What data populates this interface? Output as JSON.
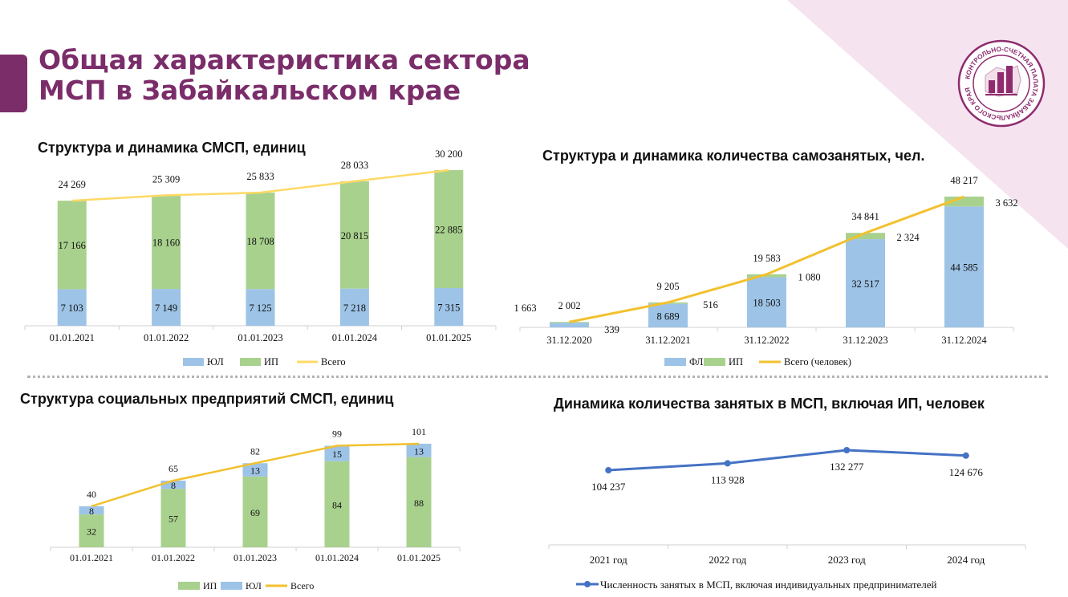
{
  "page": {
    "title_line1": "Общая характеристика сектора",
    "title_line2": "МСП в Забайкальском крае",
    "logo_text": "КОНТРОЛЬНО-СЧЕТНАЯ ПАЛАТА ЗАБАЙКАЛЬСКОГО КРАЯ"
  },
  "colors": {
    "brand": "#7b2d6a",
    "blue": "#9dc3e6",
    "green": "#a9d18e",
    "yellow_light": "#ffd966",
    "yellow": "#f2c12e",
    "line_blue": "#4472c4"
  },
  "chart_data": [
    {
      "id": "smsp",
      "type": "bar",
      "stacked": true,
      "title": "Структура и динамика СМСП, единиц",
      "categories": [
        "01.01.2021",
        "01.01.2022",
        "01.01.2023",
        "01.01.2024",
        "01.01.2025"
      ],
      "series": [
        {
          "name": "ЮЛ",
          "values": [
            7103,
            7149,
            7125,
            7218,
            7315
          ],
          "labels": [
            "7 103",
            "7 149",
            "7 125",
            "7 218",
            "7 315"
          ]
        },
        {
          "name": "ИП",
          "values": [
            17166,
            18160,
            18708,
            20815,
            22885
          ],
          "labels": [
            "17 166",
            "18 160",
            "18 708",
            "20 815",
            "22 885"
          ]
        }
      ],
      "total": {
        "name": "Всего",
        "values": [
          24269,
          25309,
          25833,
          28033,
          30200
        ],
        "labels": [
          "24 269",
          "25 309",
          "25 833",
          "28 033",
          "30 200"
        ]
      },
      "legend": [
        "ЮЛ",
        "ИП",
        "Всего"
      ],
      "ylim": [
        0,
        30200
      ]
    },
    {
      "id": "selfemployed",
      "type": "bar",
      "stacked": true,
      "title": "Структура и динамика количества самозанятых, чел.",
      "categories": [
        "31.12.2020",
        "31.12.2021",
        "31.12.2022",
        "31.12.2023",
        "31.12.2024"
      ],
      "series": [
        {
          "name": "ФЛ",
          "values": [
            1663,
            8689,
            18503,
            32517,
            44585
          ],
          "labels": [
            "1 663",
            "8 689",
            "18 503",
            "32 517",
            "44 585"
          ]
        },
        {
          "name": "ИП",
          "values": [
            339,
            516,
            1080,
            2324,
            3632
          ],
          "labels": [
            "339",
            "516",
            "1 080",
            "2 324",
            "3 632"
          ]
        }
      ],
      "total": {
        "name": "Всего (человек)",
        "values": [
          2002,
          9205,
          19583,
          34841,
          48217
        ],
        "labels": [
          "2 002",
          "9 205",
          "19 583",
          "34 841",
          "48 217"
        ]
      },
      "legend": [
        "ФЛ",
        "ИП",
        "Всего (человек)"
      ],
      "ylim": [
        0,
        48217
      ]
    },
    {
      "id": "social",
      "type": "bar",
      "stacked": true,
      "title": "Структура социальных предприятий СМСП, единиц",
      "categories": [
        "01.01.2021",
        "01.01.2022",
        "01.01.2023",
        "01.01.2024",
        "01.01.2025"
      ],
      "series": [
        {
          "name": "ИП",
          "values": [
            32,
            57,
            69,
            84,
            88
          ],
          "labels": [
            "32",
            "57",
            "69",
            "84",
            "88"
          ]
        },
        {
          "name": "ЮЛ",
          "values": [
            8,
            8,
            13,
            15,
            13
          ],
          "labels": [
            "8",
            "8",
            "13",
            "15",
            "13"
          ]
        }
      ],
      "total": {
        "name": "Всего",
        "values": [
          40,
          65,
          82,
          99,
          101
        ],
        "labels": [
          "40",
          "65",
          "82",
          "99",
          "101"
        ]
      },
      "legend": [
        "ИП",
        "ЮЛ",
        "Всего"
      ],
      "ylim": [
        0,
        101
      ]
    },
    {
      "id": "employment",
      "type": "line",
      "title": "Динамика количества занятых в МСП, включая ИП, человек",
      "categories": [
        "2021 год",
        "2022 год",
        "2023 год",
        "2024 год"
      ],
      "series": [
        {
          "name": "Численность занятых  в МСП, включая индивидуальных предпринимателей",
          "values": [
            104237,
            113928,
            132277,
            124676
          ],
          "labels": [
            "104 237",
            "113 928",
            "132 277",
            "124 676"
          ]
        }
      ],
      "legend": [
        "Численность занятых  в МСП, включая индивидуальных предпринимателей"
      ]
    }
  ]
}
